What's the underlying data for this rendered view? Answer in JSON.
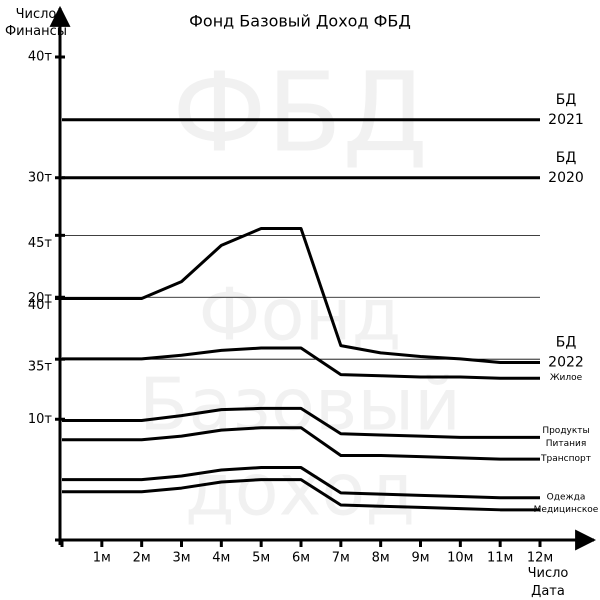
{
  "chart_data": {
    "type": "line",
    "title": "Фонд Базовый Доход ФБД",
    "y_label": "Число Финансы",
    "x_label": "Число Дата Время",
    "watermark": [
      "ФБД",
      "Фонд",
      "Базовый",
      "доход"
    ],
    "categories": [
      null,
      "1м",
      "2м",
      "3м",
      "4м",
      "5м",
      "6м",
      "7м",
      "8м",
      "9м",
      "10м",
      "11м",
      "12м"
    ],
    "ylim": [
      0,
      40
    ],
    "yticks": [
      {
        "value": 40,
        "label": "40т"
      },
      {
        "value": 30,
        "label": "30т"
      },
      {
        "value": 20,
        "label": "20т"
      },
      {
        "value": 10,
        "label": "10т"
      }
    ],
    "y2lim": [
      20.4,
      59.4
    ],
    "y2ticks": [
      {
        "value": 45,
        "label": "45т"
      },
      {
        "value": 40,
        "label": "40т"
      },
      {
        "value": 35,
        "label": "35т"
      }
    ],
    "grid": true,
    "series": [
      {
        "name": "БД 2021",
        "color": "#000000",
        "values": [
          34.8,
          34.8,
          34.8,
          34.8,
          34.8,
          34.8,
          34.8,
          34.8,
          34.8,
          34.8,
          34.8,
          34.8,
          34.8
        ]
      },
      {
        "name": "БД 2020",
        "color": "#000000",
        "values": [
          30,
          30,
          30,
          30,
          30,
          30,
          30,
          30,
          30,
          30,
          30,
          30,
          30
        ]
      },
      {
        "name": "БД 2022",
        "color": "#000000",
        "values": [
          20,
          20,
          20,
          21.4,
          24.4,
          25.8,
          25.8,
          16.1,
          15.5,
          15.2,
          15.0,
          14.7,
          14.7
        ]
      },
      {
        "name": "Жилое",
        "color": "#000000",
        "values": [
          15.0,
          15.0,
          15.0,
          15.3,
          15.7,
          15.9,
          15.9,
          13.7,
          13.6,
          13.5,
          13.5,
          13.4,
          13.4
        ]
      },
      {
        "name": "Продукты Питания",
        "color": "#000000",
        "values": [
          9.9,
          9.9,
          9.9,
          10.3,
          10.8,
          10.9,
          10.9,
          8.8,
          8.7,
          8.6,
          8.5,
          8.5,
          8.5
        ]
      },
      {
        "name": "Транспорт",
        "color": "#000000",
        "values": [
          8.3,
          8.3,
          8.3,
          8.6,
          9.1,
          9.3,
          9.3,
          7.0,
          7.0,
          6.9,
          6.8,
          6.7,
          6.7
        ]
      },
      {
        "name": "Одежда",
        "color": "#000000",
        "values": [
          5.0,
          5.0,
          5.0,
          5.3,
          5.8,
          6.0,
          6.0,
          3.9,
          3.8,
          3.7,
          3.6,
          3.5,
          3.5
        ]
      },
      {
        "name": "Медицинское",
        "color": "#000000",
        "values": [
          4.0,
          4.0,
          4.0,
          4.3,
          4.8,
          5.0,
          5.0,
          2.9,
          2.8,
          2.7,
          2.6,
          2.5,
          2.5
        ]
      }
    ]
  }
}
